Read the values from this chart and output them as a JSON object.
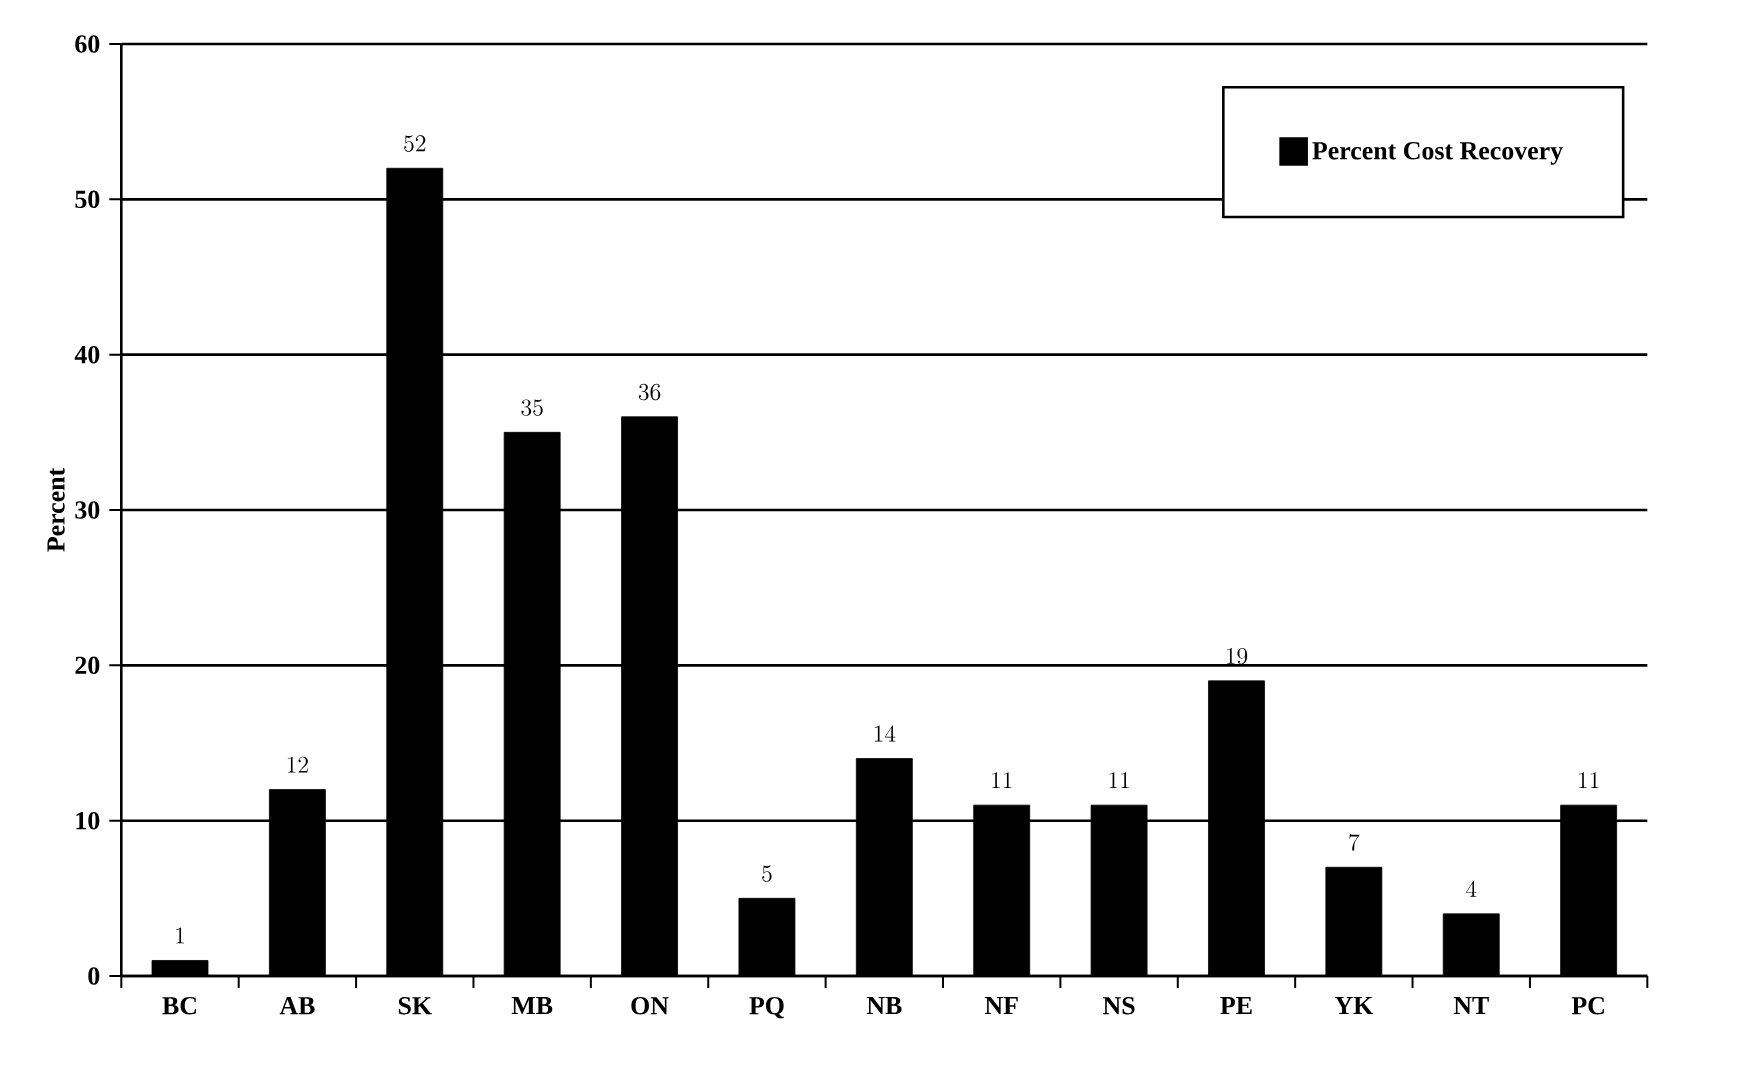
{
  "chart_data": {
    "type": "bar",
    "ylabel": "Percent",
    "categories": [
      "BC",
      "AB",
      "SK",
      "MB",
      "ON",
      "PQ",
      "NB",
      "NF",
      "NS",
      "PE",
      "YK",
      "NT",
      "PC"
    ],
    "series": [
      {
        "name": "Percent Cost Recovery",
        "color": "#000000",
        "values": [
          1,
          12,
          52,
          35,
          36,
          5,
          14,
          11,
          11,
          19,
          7,
          4,
          11
        ]
      }
    ],
    "ylim": [
      0,
      60
    ],
    "yticks": [
      0,
      10,
      20,
      30,
      40,
      50,
      60
    ],
    "grid": "y",
    "legend": "top right",
    "data_labels": true
  }
}
